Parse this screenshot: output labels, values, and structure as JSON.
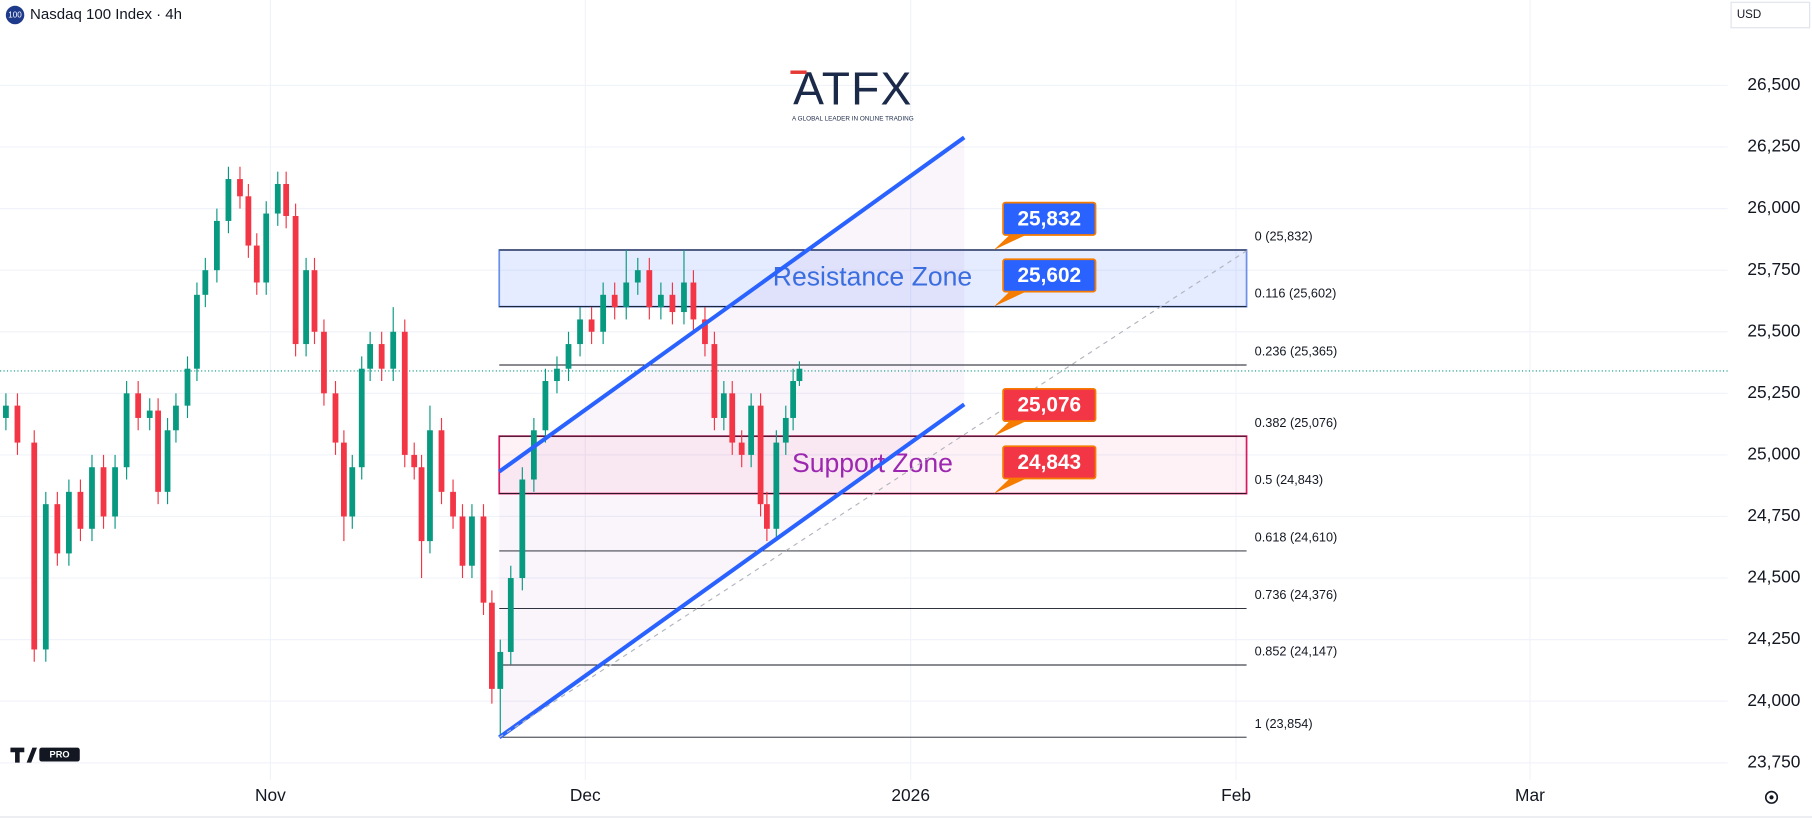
{
  "chart_data": {
    "type": "candlestick",
    "title": "Nasdaq 100 Index · 4h",
    "symbol_badge": "100",
    "currency": "USD",
    "up_color": "#089981",
    "down_color": "#f23645",
    "grid": true,
    "xlim": [
      -25.76,
      138.83
    ],
    "ylim": [
      23680,
      26847
    ],
    "xticks": [
      {
        "value": 0,
        "label": "Nov"
      },
      {
        "value": 30,
        "label": "Dec"
      },
      {
        "value": 61,
        "label": "2026"
      },
      {
        "value": 92,
        "label": "Feb"
      },
      {
        "value": 120,
        "label": "Mar"
      }
    ],
    "yticks": [
      {
        "value": 23750,
        "label": "23,750"
      },
      {
        "value": 24000,
        "label": "24,000"
      },
      {
        "value": 24250,
        "label": "24,250"
      },
      {
        "value": 24500,
        "label": "24,500"
      },
      {
        "value": 24750,
        "label": "24,750"
      },
      {
        "value": 25000,
        "label": "25,000"
      },
      {
        "value": 25250,
        "label": "25,250"
      },
      {
        "value": 25500,
        "label": "25,500"
      },
      {
        "value": 25750,
        "label": "25,750"
      },
      {
        "value": 26000,
        "label": "26,000"
      },
      {
        "value": 26250,
        "label": "26,250"
      },
      {
        "value": 26500,
        "label": "26,500"
      }
    ],
    "x": [
      -25.2,
      -24.1,
      -22.5,
      -21.4,
      -20.3,
      -19.2,
      -18.1,
      -17.0,
      -15.9,
      -14.8,
      -13.7,
      -12.6,
      -11.5,
      -10.7,
      -9.8,
      -9.0,
      -7.9,
      -7.0,
      -6.2,
      -5.1,
      -4.0,
      -2.9,
      -2.1,
      -1.3,
      -0.4,
      0.7,
      1.5,
      2.4,
      3.4,
      4.2,
      5.1,
      6.2,
      7.0,
      7.8,
      8.7,
      9.5,
      10.6,
      11.7,
      12.8,
      13.7,
      14.4,
      15.2,
      16.3,
      17.4,
      18.3,
      19.2,
      20.3,
      21.1,
      21.9,
      22.9,
      24.0,
      25.1,
      26.2,
      27.3,
      28.4,
      29.5,
      30.6,
      31.7,
      32.8,
      33.9,
      35.0,
      36.1,
      37.2,
      38.3,
      39.4,
      40.3,
      41.4,
      42.3,
      43.2,
      44.0,
      44.9,
      45.8,
      46.7,
      47.3,
      48.2,
      49.1,
      49.8,
      50.4
    ],
    "open": [
      25150,
      25200,
      25050,
      24210,
      24800,
      24600,
      24850,
      24700,
      24950,
      24750,
      24950,
      25250,
      25150,
      25180,
      24850,
      25100,
      25200,
      25350,
      25650,
      25750,
      25950,
      26120,
      26050,
      25850,
      25700,
      25980,
      26100,
      25970,
      25450,
      25750,
      25500,
      25250,
      25050,
      24750,
      24950,
      25350,
      25450,
      25350,
      25500,
      25000,
      24950,
      24650,
      25100,
      24850,
      24750,
      24550,
      24750,
      24400,
      24050,
      24200,
      24500,
      24900,
      25100,
      25300,
      25350,
      25450,
      25550,
      25500,
      25650,
      25600,
      25700,
      25750,
      25600,
      25650,
      25580,
      25700,
      25550,
      25450,
      25150,
      25250,
      25050,
      25000,
      25200,
      24800,
      24700,
      25050,
      25150,
      25300
    ],
    "high": [
      25250,
      25250,
      25100,
      24850,
      24850,
      24900,
      24900,
      25000,
      25000,
      25000,
      25300,
      25300,
      25230,
      25230,
      25150,
      25250,
      25400,
      25700,
      25800,
      26000,
      26170,
      26170,
      26100,
      25900,
      26030,
      26150,
      26150,
      26020,
      25800,
      25800,
      25550,
      25300,
      25100,
      25000,
      25400,
      25500,
      25500,
      25600,
      25550,
      25050,
      25000,
      25200,
      25150,
      24900,
      24800,
      24800,
      24800,
      24450,
      24250,
      24550,
      24950,
      25150,
      25350,
      25400,
      25500,
      25600,
      25600,
      25700,
      25700,
      25832,
      25800,
      25800,
      25700,
      25700,
      25832,
      25750,
      25600,
      25500,
      25300,
      25300,
      25100,
      25250,
      25250,
      24850,
      25100,
      25200,
      25350,
      25380
    ],
    "low": [
      25100,
      25000,
      24160,
      24160,
      24550,
      24550,
      24650,
      24650,
      24700,
      24700,
      24900,
      25100,
      25100,
      24800,
      24800,
      25050,
      25150,
      25300,
      25600,
      25700,
      25900,
      26000,
      25800,
      25650,
      25650,
      25930,
      25920,
      25400,
      25400,
      25450,
      25200,
      25000,
      24650,
      24700,
      24900,
      25300,
      25300,
      25300,
      24950,
      24900,
      24500,
      24600,
      24800,
      24700,
      24500,
      24500,
      24350,
      23990,
      23854,
      24150,
      24450,
      24850,
      25050,
      25250,
      25300,
      25400,
      25450,
      25450,
      25550,
      25550,
      25650,
      25550,
      25550,
      25530,
      25530,
      25500,
      25400,
      25100,
      25100,
      25000,
      24950,
      24950,
      24750,
      24650,
      24650,
      25000,
      25100,
      25280
    ],
    "close": [
      25200,
      25050,
      24210,
      24800,
      24600,
      24850,
      24700,
      24950,
      24750,
      24950,
      25250,
      25150,
      25180,
      24850,
      25100,
      25200,
      25350,
      25650,
      25750,
      25950,
      26120,
      26050,
      25850,
      25700,
      25980,
      26100,
      25970,
      25450,
      25750,
      25500,
      25250,
      25050,
      24750,
      24950,
      25350,
      25450,
      25350,
      25500,
      25000,
      24950,
      24650,
      25100,
      24850,
      24750,
      24550,
      24750,
      24400,
      24050,
      24200,
      24500,
      24900,
      25100,
      25300,
      25350,
      25450,
      25550,
      25500,
      25650,
      25600,
      25700,
      25750,
      25600,
      25650,
      25580,
      25700,
      25550,
      25450,
      25150,
      25250,
      25050,
      25000,
      25200,
      24800,
      24700,
      25050,
      25150,
      25300,
      25350
    ],
    "last_price": 25341,
    "channel": {
      "color": "#2962ff",
      "upper": {
        "x": [
          21.8,
          66.1
        ],
        "y": [
          24932,
          26289
        ]
      },
      "lower": {
        "x": [
          21.8,
          66.1
        ],
        "y": [
          23853,
          25205
        ]
      },
      "guide": {
        "x": [
          21.8,
          93.0
        ],
        "y": [
          23853,
          25829
        ]
      }
    },
    "fib": {
      "x": [
        21.8,
        93.0
      ],
      "levels": [
        {
          "value": 25832,
          "label": "0 (25,832)"
        },
        {
          "value": 25602,
          "label": "0.116 (25,602)"
        },
        {
          "value": 25365,
          "label": "0.236 (25,365)"
        },
        {
          "value": 25076,
          "label": "0.382 (25,076)"
        },
        {
          "value": 24843,
          "label": "0.5 (24,843)"
        },
        {
          "value": 24610,
          "label": "0.618 (24,610)"
        },
        {
          "value": 24376,
          "label": "0.736 (24,376)"
        },
        {
          "value": 24147,
          "label": "0.852 (24,147)"
        },
        {
          "value": 23854,
          "label": "1 (23,854)"
        }
      ]
    },
    "zones": [
      {
        "name": "Resistance Zone",
        "range": [
          25602,
          25832
        ],
        "x": [
          21.8,
          93.0
        ],
        "fill": "rgba(41,98,255,0.12)",
        "stroke": "#6d8fe8",
        "text_color": "#3a6ee0"
      },
      {
        "name": "Support Zone",
        "range": [
          24843,
          25076
        ],
        "x": [
          21.8,
          93.0
        ],
        "fill": "rgba(233,30,99,0.06)",
        "stroke": "#d81b60",
        "text_color": "#9c27b0"
      }
    ],
    "price_labels": [
      {
        "value": 25832,
        "label": "25,832",
        "color": "#2962ff"
      },
      {
        "value": 25602,
        "label": "25,602",
        "color": "#2962ff"
      },
      {
        "value": 25076,
        "label": "25,076",
        "color": "#f23645"
      },
      {
        "value": 24843,
        "label": "24,843",
        "color": "#f23645"
      }
    ],
    "logo": {
      "name": "ATFX",
      "tagline": "A GLOBAL LEADER IN ONLINE TRADING"
    },
    "watermark": "PRO"
  }
}
